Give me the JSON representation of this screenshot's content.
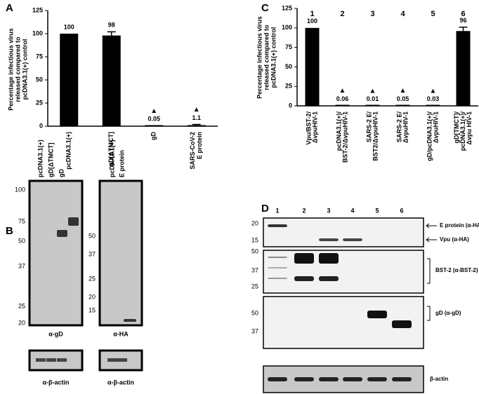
{
  "chart_data": [
    {
      "type": "bar",
      "label": "A",
      "ylabel": [
        "Percentage infectious virus",
        "released compared to",
        "pcDNA3.1(+) control"
      ],
      "categories": [
        [
          "pcDNA3.1(+)"
        ],
        [
          "gD[ΔTMCT]"
        ],
        [
          "gD"
        ],
        [
          "SARS-CoV-2",
          "E protein"
        ]
      ],
      "values": [
        100,
        98,
        0.05,
        1.1
      ],
      "errors": [
        0,
        4,
        0.5,
        0.8
      ],
      "markers": [
        null,
        null,
        "▲",
        "▲"
      ],
      "color": "#000000",
      "ylim": [
        0,
        125
      ],
      "yticks": [
        0,
        25,
        50,
        75,
        100,
        125
      ],
      "grid": false
    },
    {
      "type": "bar",
      "label": "C",
      "ylabel": [
        "Percentage infectious virus",
        "released compared to",
        "pcDNA3.1(+) control"
      ],
      "lane_numbers": [
        1,
        2,
        3,
        4,
        5,
        6
      ],
      "categories": [
        [
          "Vpu/BST-2/",
          "ΔvpuHIV-1"
        ],
        [
          "pcDNA3.1(+)/",
          "BST-2/ΔvpuHIV-1"
        ],
        [
          "SARS-2 E/",
          "BST2/ΔvpuHIV-1"
        ],
        [
          "SARS-2 E/",
          "ΔvpuHIV-1"
        ],
        [
          "gD/pcDNA3.1(+)/",
          "ΔvpuHIV-1"
        ],
        [
          "gD[TMCT]/",
          "pcDNA3.1(+)/",
          "Δvpu HIV-1"
        ]
      ],
      "values": [
        100,
        0.06,
        0.01,
        0.05,
        0.03,
        96
      ],
      "errors": [
        0,
        0.5,
        0.3,
        0.5,
        0.3,
        5
      ],
      "markers": [
        null,
        "▲",
        "▲",
        "▲",
        "▲",
        null
      ],
      "color": "#000000",
      "ylim": [
        0,
        125
      ],
      "yticks": [
        0,
        25,
        50,
        75,
        100,
        125
      ],
      "grid": false
    }
  ],
  "panel_b": {
    "label": "B",
    "gels": [
      {
        "lanes": [
          "pcDNA3.1(+)",
          "gD[ΔTMCT]",
          "gD"
        ],
        "markers": [
          100,
          75,
          50,
          37,
          25,
          20
        ],
        "antibody": "α-gD"
      },
      {
        "lanes": [
          "pcDNA3.1(+)",
          "E protein"
        ],
        "markers": [
          50,
          37,
          25,
          20,
          15
        ],
        "antibody": "α-HA"
      }
    ],
    "actin": [
      "α-β-actin",
      "α-β-actin"
    ]
  },
  "panel_d": {
    "label": "D",
    "lanes": [
      1,
      2,
      3,
      4,
      5,
      6
    ],
    "blots": [
      {
        "markers": [
          20,
          15
        ],
        "labels": [
          "E protein (α-HA)",
          "Vpu (α-HA)"
        ]
      },
      {
        "markers": [
          50,
          37,
          25
        ],
        "labels": [
          "BST-2 (α-BST-2)"
        ]
      },
      {
        "markers": [
          50,
          37
        ],
        "labels": [
          "gD (α-gD)"
        ]
      },
      {
        "markers": [],
        "labels": [
          "β-actin"
        ]
      }
    ]
  }
}
